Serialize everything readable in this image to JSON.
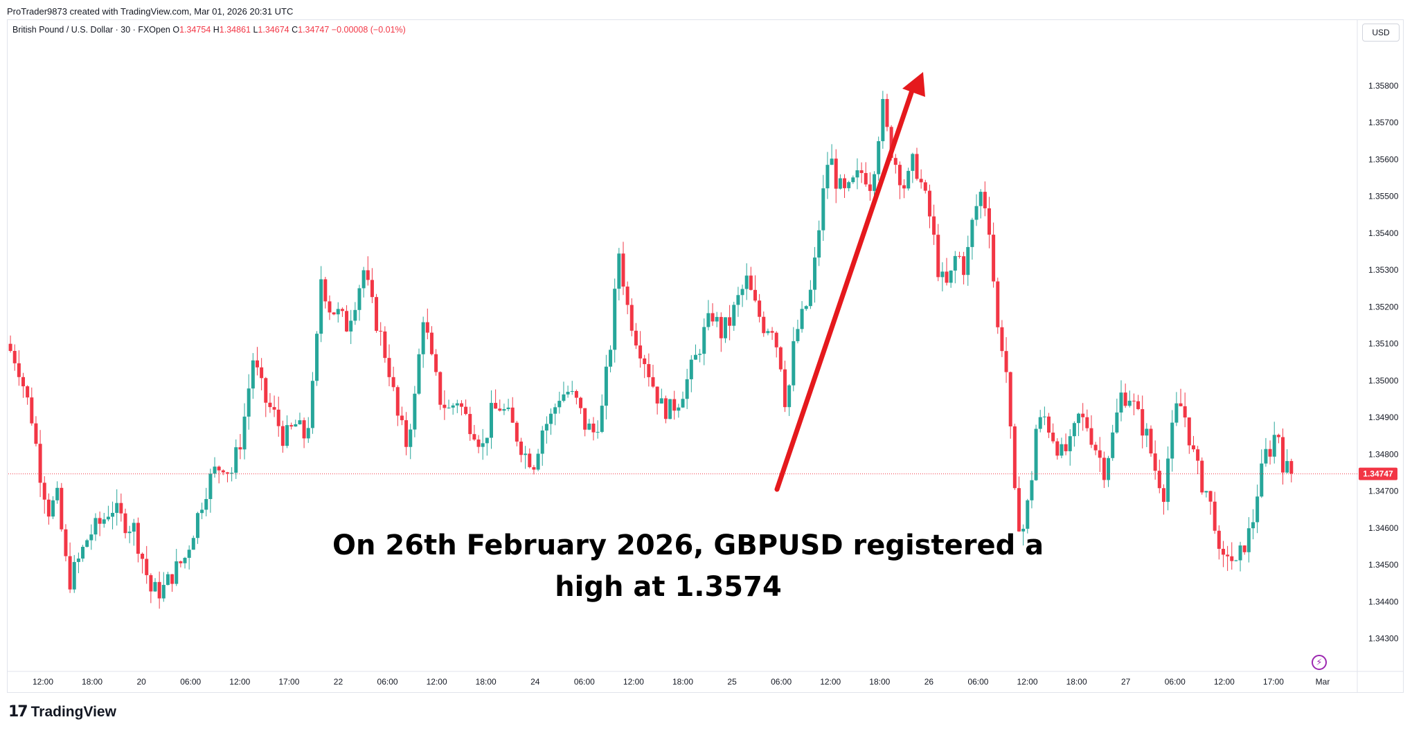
{
  "header": {
    "attribution": "ProTrader9873 created with TradingView.com, Mar 01, 2026 20:31 UTC"
  },
  "legend": {
    "symbol": "British Pound / U.S. Dollar · 30 · FXOpen",
    "open_label": "O",
    "open": "1.34754",
    "high_label": "H",
    "high": "1.34861",
    "low_label": "L",
    "low": "1.34674",
    "close_label": "C",
    "close": "1.34747",
    "change": "−0.00008 (−0.01%)"
  },
  "price_axis": {
    "currency": "USD",
    "last_price_label": "1.34747"
  },
  "annotation": {
    "line1": "On 26th February 2026, GBPUSD registered a",
    "line2": "high at 1.3574"
  },
  "footer": {
    "logo_mark": "17",
    "logo_text": "TradingView"
  },
  "colors": {
    "up": "#26a69a",
    "down": "#f23645",
    "arrow": "#e5191d",
    "last_price_line": "#f23645",
    "axis_text": "#131722",
    "grid": "#f0f3fa"
  },
  "icons": {
    "lightning": "lightning-icon"
  },
  "chart_data": {
    "type": "candlestick",
    "symbol": "GBPUSD",
    "timeframe": "30",
    "ylim": [
      1.3423,
      1.3592
    ],
    "y_ticks": [
      "1.34300",
      "1.34400",
      "1.34500",
      "1.34600",
      "1.34700",
      "1.34800",
      "1.34900",
      "1.35000",
      "1.35100",
      "1.35200",
      "1.35300",
      "1.35400",
      "1.35500",
      "1.35600",
      "1.35700",
      "1.35800"
    ],
    "x_tick_labels": [
      "12:00",
      "18:00",
      "20",
      "06:00",
      "12:00",
      "17:00",
      "22",
      "06:00",
      "12:00",
      "18:00",
      "24",
      "06:00",
      "12:00",
      "18:00",
      "25",
      "06:00",
      "12:00",
      "18:00",
      "26",
      "06:00",
      "12:00",
      "18:00",
      "27",
      "06:00",
      "12:00",
      "17:00",
      "Mar"
    ],
    "last_price": 1.34747,
    "key_high": 1.3574,
    "price_path": [
      [
        0,
        1.351
      ],
      [
        8,
        1.3505
      ],
      [
        18,
        1.349
      ],
      [
        24,
        1.3475
      ],
      [
        30,
        1.3465
      ],
      [
        36,
        1.3468
      ],
      [
        44,
        1.3445
      ],
      [
        52,
        1.3452
      ],
      [
        58,
        1.3458
      ],
      [
        68,
        1.3462
      ],
      [
        74,
        1.3466
      ],
      [
        82,
        1.3462
      ],
      [
        90,
        1.346
      ],
      [
        96,
        1.3452
      ],
      [
        102,
        1.3443
      ],
      [
        110,
        1.3443
      ],
      [
        118,
        1.3448
      ],
      [
        126,
        1.3452
      ],
      [
        134,
        1.3462
      ],
      [
        140,
        1.347
      ],
      [
        146,
        1.3475
      ],
      [
        154,
        1.3478
      ],
      [
        158,
        1.3474
      ],
      [
        166,
        1.3485
      ],
      [
        174,
        1.3506
      ],
      [
        182,
        1.3495
      ],
      [
        190,
        1.349
      ],
      [
        196,
        1.3484
      ],
      [
        204,
        1.3488
      ],
      [
        210,
        1.3485
      ],
      [
        214,
        1.349
      ],
      [
        218,
        1.3505
      ],
      [
        222,
        1.3528
      ],
      [
        228,
        1.352
      ],
      [
        234,
        1.3518
      ],
      [
        240,
        1.3515
      ],
      [
        246,
        1.3522
      ],
      [
        252,
        1.353
      ],
      [
        258,
        1.352
      ],
      [
        264,
        1.3512
      ],
      [
        270,
        1.3503
      ],
      [
        276,
        1.349
      ],
      [
        282,
        1.3483
      ],
      [
        288,
        1.3495
      ],
      [
        294,
        1.3518
      ],
      [
        300,
        1.3505
      ],
      [
        306,
        1.3495
      ],
      [
        312,
        1.3492
      ],
      [
        318,
        1.3495
      ],
      [
        324,
        1.349
      ],
      [
        330,
        1.3487
      ],
      [
        336,
        1.3482
      ],
      [
        342,
        1.3491
      ],
      [
        348,
        1.3493
      ],
      [
        354,
        1.349
      ],
      [
        360,
        1.3485
      ],
      [
        366,
        1.348
      ],
      [
        372,
        1.3478
      ],
      [
        378,
        1.3487
      ],
      [
        384,
        1.349
      ],
      [
        390,
        1.3496
      ],
      [
        396,
        1.3497
      ],
      [
        402,
        1.3494
      ],
      [
        408,
        1.3488
      ],
      [
        414,
        1.3486
      ],
      [
        420,
        1.3492
      ],
      [
        426,
        1.351
      ],
      [
        432,
        1.3535
      ],
      [
        438,
        1.352
      ],
      [
        444,
        1.3512
      ],
      [
        450,
        1.3506
      ],
      [
        456,
        1.3499
      ],
      [
        462,
        1.3493
      ],
      [
        468,
        1.3492
      ],
      [
        474,
        1.3495
      ],
      [
        480,
        1.35
      ],
      [
        486,
        1.3506
      ],
      [
        492,
        1.3513
      ],
      [
        498,
        1.3518
      ],
      [
        504,
        1.3513
      ],
      [
        510,
        1.3516
      ],
      [
        516,
        1.3522
      ],
      [
        522,
        1.3527
      ],
      [
        528,
        1.352
      ],
      [
        534,
        1.3515
      ],
      [
        540,
        1.3515
      ],
      [
        546,
        1.3505
      ],
      [
        550,
        1.3492
      ],
      [
        556,
        1.3512
      ],
      [
        562,
        1.3518
      ],
      [
        568,
        1.3525
      ],
      [
        574,
        1.3545
      ],
      [
        580,
        1.3562
      ],
      [
        586,
        1.3553
      ],
      [
        592,
        1.355
      ],
      [
        598,
        1.3554
      ],
      [
        604,
        1.3557
      ],
      [
        610,
        1.3553
      ],
      [
        614,
        1.3565
      ],
      [
        618,
        1.3574
      ],
      [
        622,
        1.3565
      ],
      [
        628,
        1.3558
      ],
      [
        634,
        1.3552
      ],
      [
        640,
        1.356
      ],
      [
        646,
        1.3552
      ],
      [
        652,
        1.3543
      ],
      [
        658,
        1.3528
      ],
      [
        664,
        1.3525
      ],
      [
        670,
        1.3535
      ],
      [
        676,
        1.353
      ],
      [
        682,
        1.3545
      ],
      [
        688,
        1.3552
      ],
      [
        694,
        1.354
      ],
      [
        698,
        1.3515
      ],
      [
        702,
        1.351
      ],
      [
        706,
        1.35
      ],
      [
        710,
        1.347
      ],
      [
        716,
        1.3458
      ],
      [
        722,
        1.347
      ],
      [
        726,
        1.3487
      ],
      [
        732,
        1.349
      ],
      [
        738,
        1.3485
      ],
      [
        744,
        1.348
      ],
      [
        750,
        1.3482
      ],
      [
        756,
        1.349
      ],
      [
        762,
        1.3488
      ],
      [
        768,
        1.3482
      ],
      [
        774,
        1.3476
      ],
      [
        780,
        1.3485
      ],
      [
        786,
        1.3496
      ],
      [
        792,
        1.3496
      ],
      [
        798,
        1.349
      ],
      [
        804,
        1.3485
      ],
      [
        810,
        1.3476
      ],
      [
        816,
        1.347
      ],
      [
        820,
        1.3482
      ],
      [
        826,
        1.3494
      ],
      [
        830,
        1.3492
      ],
      [
        834,
        1.3485
      ],
      [
        838,
        1.3478
      ],
      [
        842,
        1.3473
      ],
      [
        846,
        1.347
      ],
      [
        852,
        1.3462
      ],
      [
        856,
        1.3448
      ],
      [
        862,
        1.3455
      ],
      [
        866,
        1.3448
      ],
      [
        872,
        1.3455
      ],
      [
        878,
        1.346
      ],
      [
        882,
        1.347
      ],
      [
        888,
        1.348
      ],
      [
        892,
        1.3482
      ],
      [
        896,
        1.3488
      ],
      [
        900,
        1.3478
      ],
      [
        904,
        1.3475
      ]
    ],
    "x_max": 950
  }
}
